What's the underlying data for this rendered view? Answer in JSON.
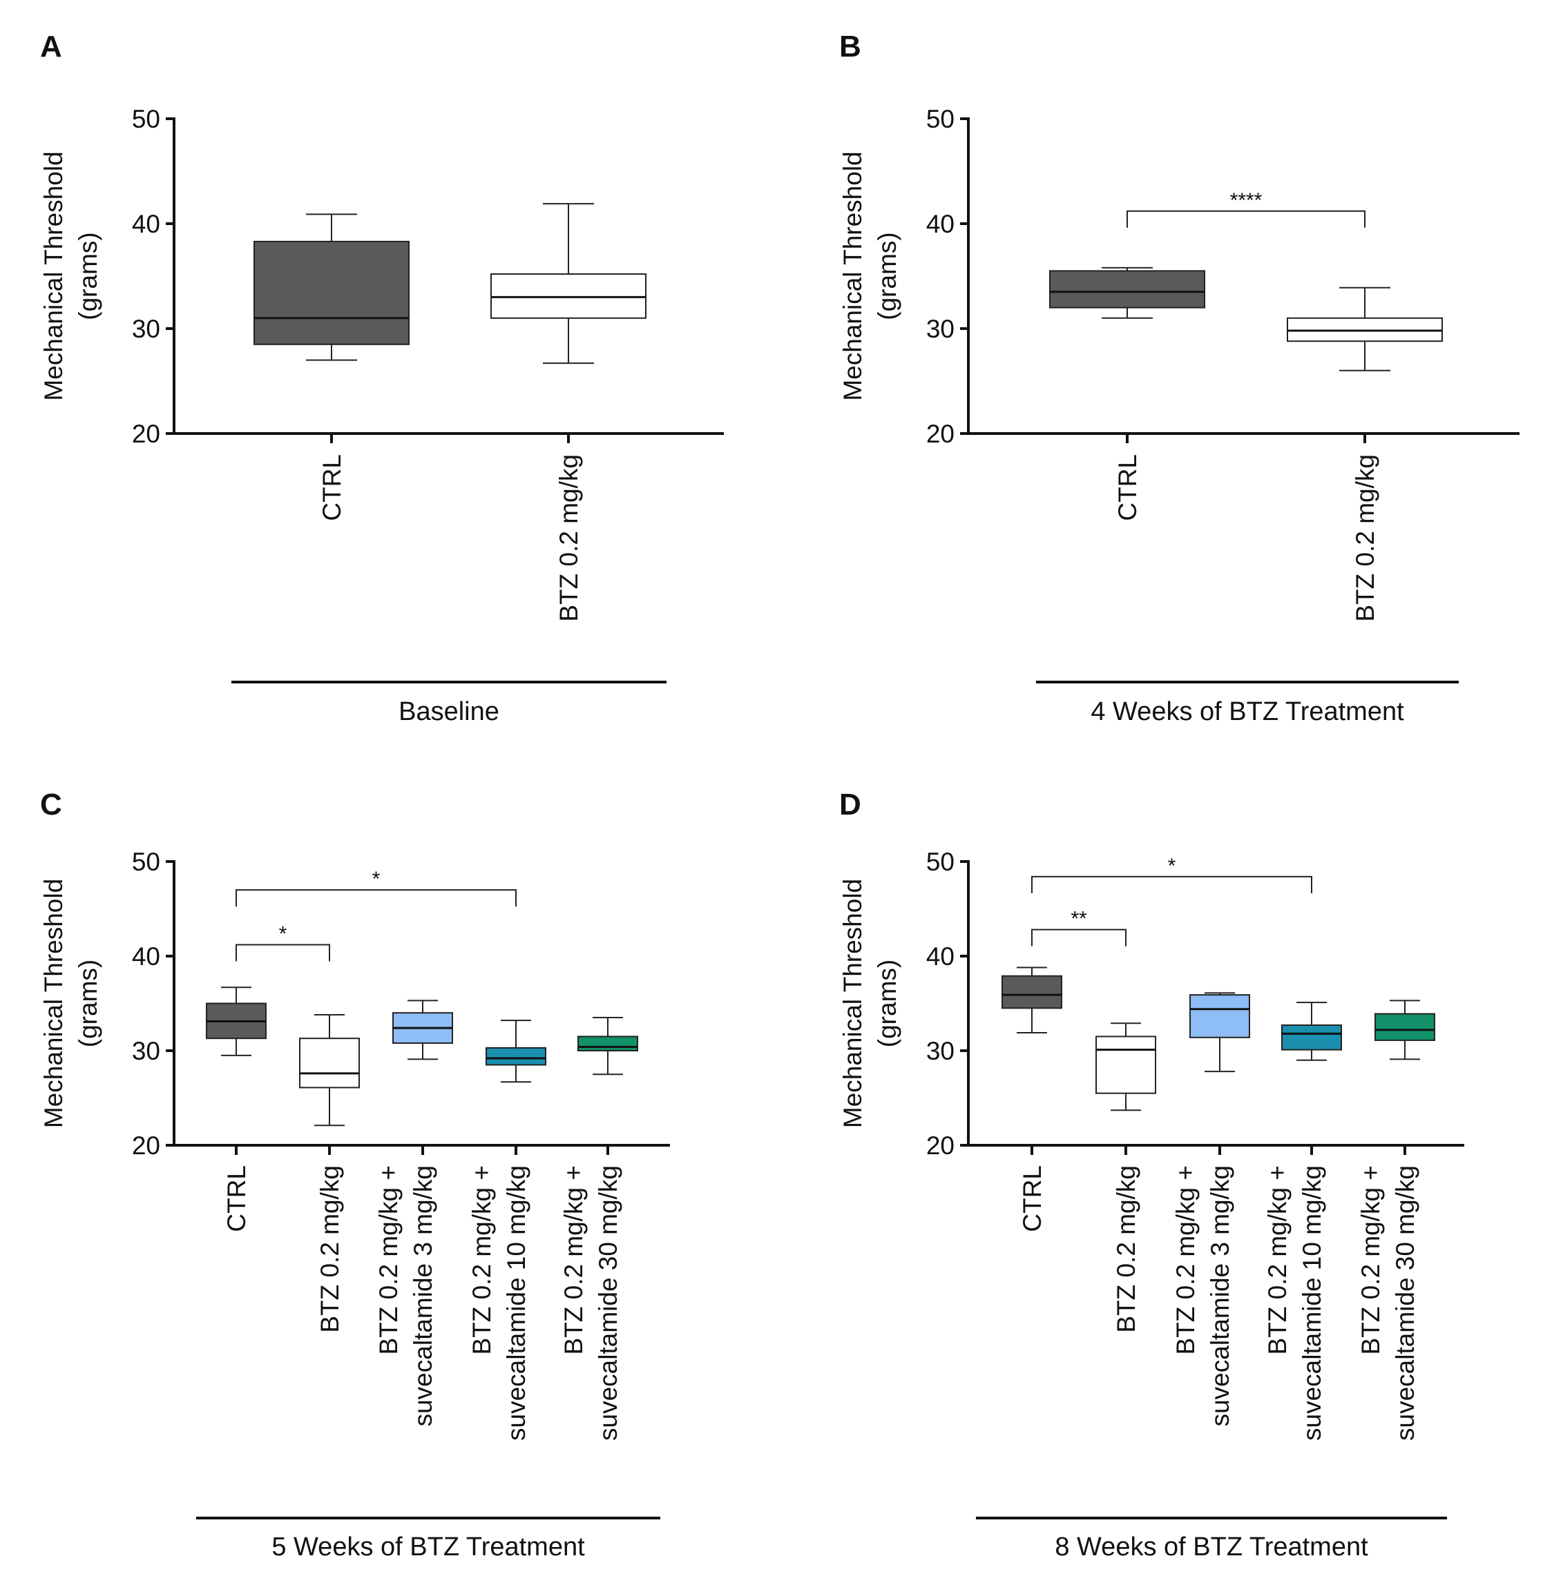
{
  "chart_data": [
    {
      "panel": "A",
      "type": "box",
      "ylabel_line1": "Mechanical Threshold",
      "ylabel_line2": "(grams)",
      "ylim": [
        20,
        50
      ],
      "yticks": [
        "20",
        "30",
        "40",
        "50"
      ],
      "group_label": "Baseline",
      "boxes": [
        {
          "category_lines": [
            "CTRL"
          ],
          "min": 27,
          "q1": 28.5,
          "median": 31,
          "q3": 38.3,
          "max": 40.9,
          "fill": "#5a5a5a",
          "median_color": "#111111"
        },
        {
          "category_lines": [
            "BTZ 0.2 mg/kg"
          ],
          "min": 26.7,
          "q1": 31,
          "median": 33,
          "q3": 35.2,
          "max": 41.9,
          "fill": "#ffffff",
          "median_color": "#111111"
        }
      ],
      "significance": []
    },
    {
      "panel": "B",
      "type": "box",
      "ylabel_line1": "Mechanical Threshold",
      "ylabel_line2": "(grams)",
      "ylim": [
        20,
        50
      ],
      "yticks": [
        "20",
        "30",
        "40",
        "50"
      ],
      "group_label": "4 Weeks of BTZ Treatment",
      "boxes": [
        {
          "category_lines": [
            "CTRL"
          ],
          "min": 31,
          "q1": 32,
          "median": 33.5,
          "q3": 35.5,
          "max": 35.8,
          "fill": "#5a5a5a",
          "median_color": "#111111"
        },
        {
          "category_lines": [
            "BTZ 0.2 mg/kg"
          ],
          "min": 26,
          "q1": 28.8,
          "median": 29.8,
          "q3": 31,
          "max": 33.9,
          "fill": "#ffffff",
          "median_color": "#111111"
        }
      ],
      "significance": [
        {
          "from": 0,
          "to": 1,
          "y": 41.2,
          "label": "****"
        }
      ]
    },
    {
      "panel": "C",
      "type": "box",
      "ylabel_line1": "Mechanical Threshold",
      "ylabel_line2": "(grams)",
      "ylim": [
        20,
        50
      ],
      "yticks": [
        "20",
        "30",
        "40",
        "50"
      ],
      "group_label": "5 Weeks of BTZ Treatment",
      "boxes": [
        {
          "category_lines": [
            "CTRL"
          ],
          "min": 29.5,
          "q1": 31.3,
          "median": 33.1,
          "q3": 35,
          "max": 36.7,
          "fill": "#5a5a5a",
          "median_color": "#111111"
        },
        {
          "category_lines": [
            "BTZ 0.2 mg/kg"
          ],
          "min": 22.1,
          "q1": 26.1,
          "median": 27.6,
          "q3": 31.3,
          "max": 33.8,
          "fill": "#ffffff",
          "median_color": "#111111"
        },
        {
          "category_lines": [
            "BTZ 0.2 mg/kg +",
            "suvecaltamide 3 mg/kg"
          ],
          "min": 29.1,
          "q1": 30.8,
          "median": 32.4,
          "q3": 34,
          "max": 35.3,
          "fill": "#8fbdf5",
          "median_color": "#111111"
        },
        {
          "category_lines": [
            "BTZ 0.2 mg/kg +",
            "suvecaltamide 10 mg/kg"
          ],
          "min": 26.7,
          "q1": 28.5,
          "median": 29.2,
          "q3": 30.3,
          "max": 33.2,
          "fill": "#1a8fae",
          "median_color": "#111111"
        },
        {
          "category_lines": [
            "BTZ 0.2 mg/kg +",
            "suvecaltamide 30 mg/kg"
          ],
          "min": 27.5,
          "q1": 30,
          "median": 30.4,
          "q3": 31.5,
          "max": 33.5,
          "fill": "#11906a",
          "median_color": "#111111"
        }
      ],
      "significance": [
        {
          "from": 0,
          "to": 3,
          "y": 47,
          "label": "*"
        },
        {
          "from": 0,
          "to": 1,
          "y": 41.2,
          "label": "*"
        }
      ]
    },
    {
      "panel": "D",
      "type": "box",
      "ylabel_line1": "Mechanical Threshold",
      "ylabel_line2": "(grams)",
      "ylim": [
        20,
        50
      ],
      "yticks": [
        "20",
        "30",
        "40",
        "50"
      ],
      "group_label": "8 Weeks of BTZ Treatment",
      "boxes": [
        {
          "category_lines": [
            "CTRL"
          ],
          "min": 31.9,
          "q1": 34.5,
          "median": 35.9,
          "q3": 37.9,
          "max": 38.8,
          "fill": "#5a5a5a",
          "median_color": "#111111"
        },
        {
          "category_lines": [
            "BTZ 0.2 mg/kg"
          ],
          "min": 23.7,
          "q1": 25.5,
          "median": 30.1,
          "q3": 31.5,
          "max": 32.9,
          "fill": "#ffffff",
          "median_color": "#111111"
        },
        {
          "category_lines": [
            "BTZ 0.2 mg/kg +",
            "suvecaltamide 3 mg/kg"
          ],
          "min": 27.8,
          "q1": 31.4,
          "median": 34.4,
          "q3": 35.9,
          "max": 36.1,
          "fill": "#8fbdf5",
          "median_color": "#111111"
        },
        {
          "category_lines": [
            "BTZ 0.2 mg/kg +",
            "suvecaltamide 10 mg/kg"
          ],
          "min": 29,
          "q1": 30.1,
          "median": 31.8,
          "q3": 32.7,
          "max": 35.1,
          "fill": "#1a8fae",
          "median_color": "#111111"
        },
        {
          "category_lines": [
            "BTZ 0.2 mg/kg +",
            "suvecaltamide 30 mg/kg"
          ],
          "min": 29.1,
          "q1": 31.1,
          "median": 32.2,
          "q3": 33.9,
          "max": 35.3,
          "fill": "#11906a",
          "median_color": "#111111"
        }
      ],
      "significance": [
        {
          "from": 0,
          "to": 3,
          "y": 48.4,
          "label": "*"
        },
        {
          "from": 0,
          "to": 1,
          "y": 42.8,
          "label": "**"
        }
      ]
    }
  ]
}
